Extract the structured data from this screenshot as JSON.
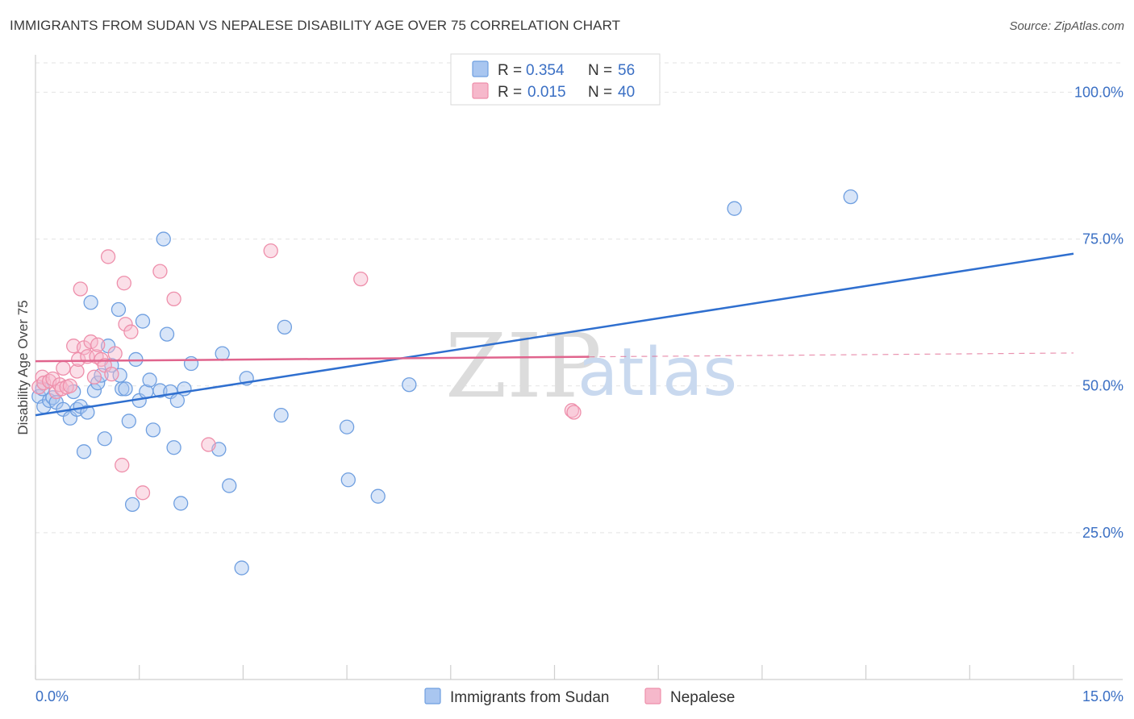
{
  "header": {
    "title": "IMMIGRANTS FROM SUDAN VS NEPALESE DISABILITY AGE OVER 75 CORRELATION CHART",
    "source": "Source: ZipAtlas.com"
  },
  "watermark": {
    "zip": "ZIP",
    "atlas": "atlas"
  },
  "legend": {
    "rows": [
      {
        "r_label": "R = ",
        "r_value": "0.354",
        "n_label": "N = ",
        "n_value": "56",
        "color": "#a9c6f0"
      },
      {
        "r_label": "R = ",
        "r_value": "0.015",
        "n_label": "N = ",
        "n_value": "40",
        "color": "#f6b8cb"
      }
    ]
  },
  "chart_data": {
    "type": "scatter",
    "title": "IMMIGRANTS FROM SUDAN VS NEPALESE DISABILITY AGE OVER 75 CORRELATION CHART",
    "xlabel": "",
    "ylabel": "Disability Age Over 75",
    "xlim": [
      0,
      15
    ],
    "ylim": [
      0,
      105
    ],
    "x_ticks": [
      "0.0%",
      "15.0%"
    ],
    "y_ticks": [
      {
        "value": 25,
        "label": "25.0%"
      },
      {
        "value": 50,
        "label": "50.0%"
      },
      {
        "value": 75,
        "label": "75.0%"
      },
      {
        "value": 100,
        "label": "100.0%"
      }
    ],
    "grid": true,
    "legend_position": "top-center",
    "series": [
      {
        "name": "Immigrants from Sudan",
        "color": "#6f9fe0",
        "fill": "#a9c6f0",
        "trend": {
          "x": [
            0,
            15
          ],
          "y": [
            45,
            72.5
          ],
          "color": "#2f6fcf",
          "dashed_from": null
        },
        "points": [
          [
            0.05,
            48.2
          ],
          [
            0.1,
            49.5
          ],
          [
            0.12,
            46.5
          ],
          [
            0.2,
            47.5
          ],
          [
            0.25,
            48.0
          ],
          [
            0.3,
            47.2
          ],
          [
            0.4,
            46.0
          ],
          [
            0.5,
            44.5
          ],
          [
            0.55,
            49.0
          ],
          [
            0.6,
            46.0
          ],
          [
            0.65,
            46.5
          ],
          [
            0.7,
            38.8
          ],
          [
            0.75,
            45.5
          ],
          [
            0.8,
            64.2
          ],
          [
            0.85,
            49.2
          ],
          [
            0.9,
            50.5
          ],
          [
            0.95,
            51.8
          ],
          [
            1.0,
            41.0
          ],
          [
            1.05,
            56.8
          ],
          [
            1.1,
            53.5
          ],
          [
            1.2,
            63.0
          ],
          [
            1.22,
            51.8
          ],
          [
            1.25,
            49.5
          ],
          [
            1.3,
            49.5
          ],
          [
            1.35,
            44.0
          ],
          [
            1.4,
            29.8
          ],
          [
            1.45,
            54.5
          ],
          [
            1.5,
            47.5
          ],
          [
            1.55,
            61.0
          ],
          [
            1.6,
            49.0
          ],
          [
            1.65,
            51.0
          ],
          [
            1.7,
            42.5
          ],
          [
            1.8,
            49.2
          ],
          [
            1.85,
            75.0
          ],
          [
            1.9,
            58.8
          ],
          [
            1.95,
            49.0
          ],
          [
            2.0,
            39.5
          ],
          [
            2.05,
            47.5
          ],
          [
            2.1,
            30.0
          ],
          [
            2.15,
            49.5
          ],
          [
            2.25,
            53.8
          ],
          [
            2.65,
            39.2
          ],
          [
            2.7,
            55.5
          ],
          [
            2.8,
            33.0
          ],
          [
            2.98,
            19.0
          ],
          [
            3.05,
            51.3
          ],
          [
            3.55,
            45.0
          ],
          [
            3.6,
            60.0
          ],
          [
            4.5,
            43.0
          ],
          [
            4.52,
            34.0
          ],
          [
            4.95,
            31.2
          ],
          [
            5.4,
            50.2
          ],
          [
            10.1,
            80.2
          ],
          [
            11.78,
            82.2
          ]
        ]
      },
      {
        "name": "Nepalese",
        "color": "#ee8fab",
        "fill": "#f6b8cb",
        "trend": {
          "x": [
            0,
            15
          ],
          "y": [
            54.2,
            55.6
          ],
          "solid_until": 8.0,
          "color": "#e0648d"
        },
        "points": [
          [
            0.05,
            49.8
          ],
          [
            0.1,
            51.5
          ],
          [
            0.12,
            50.5
          ],
          [
            0.2,
            50.8
          ],
          [
            0.25,
            51.2
          ],
          [
            0.3,
            49.0
          ],
          [
            0.35,
            50.2
          ],
          [
            0.38,
            49.5
          ],
          [
            0.4,
            53.0
          ],
          [
            0.45,
            49.8
          ],
          [
            0.5,
            50.0
          ],
          [
            0.55,
            56.8
          ],
          [
            0.6,
            52.5
          ],
          [
            0.62,
            54.5
          ],
          [
            0.65,
            66.5
          ],
          [
            0.7,
            56.5
          ],
          [
            0.75,
            55.0
          ],
          [
            0.8,
            57.5
          ],
          [
            0.85,
            51.5
          ],
          [
            0.88,
            55.0
          ],
          [
            0.9,
            57.0
          ],
          [
            0.95,
            54.5
          ],
          [
            1.0,
            53.5
          ],
          [
            1.05,
            72.0
          ],
          [
            1.1,
            52.0
          ],
          [
            1.15,
            55.5
          ],
          [
            1.25,
            36.5
          ],
          [
            1.28,
            67.5
          ],
          [
            1.3,
            60.5
          ],
          [
            1.38,
            59.2
          ],
          [
            1.55,
            31.8
          ],
          [
            1.8,
            69.5
          ],
          [
            2.0,
            64.8
          ],
          [
            2.5,
            40.0
          ],
          [
            3.4,
            73.0
          ],
          [
            4.7,
            68.2
          ],
          [
            7.75,
            45.8
          ],
          [
            7.78,
            45.5
          ]
        ]
      }
    ]
  }
}
